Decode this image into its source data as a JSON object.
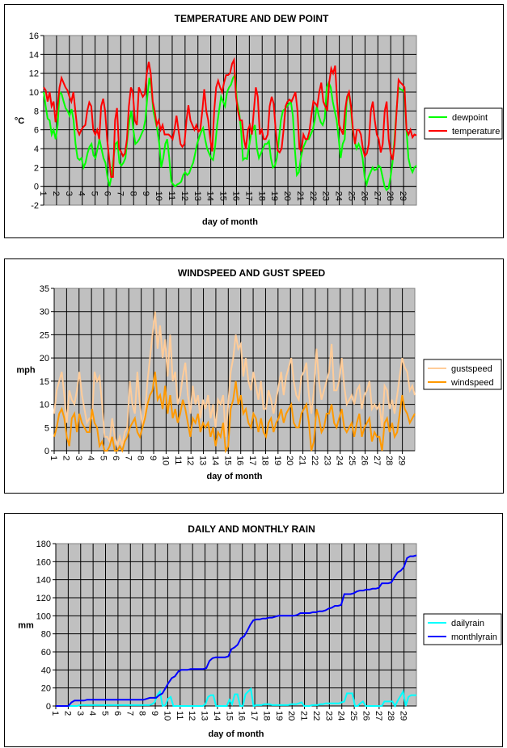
{
  "chart_data": [
    {
      "id": "temp",
      "type": "line",
      "title": "TEMPERATURE AND DEW POINT",
      "xlabel": "day of month",
      "ylabel": "°C",
      "ylim": [
        -2,
        16
      ],
      "yticks": [
        -2,
        0,
        2,
        4,
        6,
        8,
        10,
        12,
        14,
        16
      ],
      "xlim": [
        1,
        30
      ],
      "xticks": [
        "1",
        "2",
        "3",
        "4",
        "5",
        "6",
        "7",
        "8",
        "9",
        "10",
        "11",
        "12",
        "13",
        "14",
        "15",
        "16",
        "17",
        "18",
        "19",
        "20",
        "21",
        "22",
        "23",
        "24",
        "25",
        "26",
        "27",
        "28",
        "29"
      ],
      "grid": true,
      "legend": "right",
      "samples_per_day": 4,
      "series": [
        {
          "name": "dewpoint",
          "color": "#00ff00",
          "values": [
            10,
            8.5,
            7.2,
            7,
            5.5,
            6,
            5,
            6.5,
            10,
            9.8,
            9,
            8.3,
            8,
            7.5,
            8.2,
            7,
            4.5,
            3,
            2.8,
            3,
            2,
            2.5,
            3.5,
            4.2,
            4.5,
            3.3,
            3,
            4,
            5,
            4,
            3,
            2.5,
            1,
            0,
            1,
            3,
            4.5,
            4.7,
            2.5,
            2.2,
            2.5,
            3,
            5,
            7,
            8,
            6,
            4.5,
            4.7,
            5,
            5.5,
            6,
            7,
            9.5,
            11.5,
            10.5,
            8,
            7,
            6,
            4.5,
            2,
            3,
            4.5,
            5,
            3,
            0.5,
            0.2,
            0,
            0.2,
            0.3,
            0.5,
            1.2,
            1.5,
            1.2,
            1.4,
            2,
            2.5,
            3.5,
            4.5,
            5.2,
            5.8,
            6.2,
            5,
            4,
            3.5,
            3,
            2.8,
            4.2,
            6.5,
            8,
            9.5,
            9,
            8.5,
            10,
            10.5,
            10.8,
            11.5,
            11.8,
            9,
            8,
            6,
            2.8,
            3,
            2.9,
            4.2,
            5.5,
            6,
            6.5,
            4,
            3,
            3.5,
            4,
            4.5,
            4.5,
            4.8,
            3,
            2,
            2.2,
            3,
            5,
            7,
            8,
            8.2,
            8.5,
            8.7,
            9,
            7.5,
            4,
            1.2,
            1.5,
            3,
            4,
            4.5,
            5,
            5,
            5.5,
            6,
            7,
            8.5,
            7.5,
            6.8,
            6.5,
            7.2,
            10.5,
            11,
            10.5,
            9,
            8,
            7,
            5,
            3,
            4.5,
            5,
            9,
            10,
            8.5,
            6,
            4.8,
            4,
            4.5,
            4,
            3,
            1,
            0.2,
            1,
            1.5,
            2,
            1.7,
            1.8,
            2.2,
            2,
            1,
            0,
            -0.4,
            -0.2,
            1,
            2.5,
            5,
            8,
            10.5,
            10.3,
            10.2,
            10,
            6,
            3,
            2,
            1.5,
            2,
            2.2
          ]
        },
        {
          "name": "temperature",
          "color": "#ff0000",
          "values": [
            10.5,
            10.2,
            9,
            10,
            8.5,
            9,
            6.8,
            8.5,
            10.5,
            11.5,
            11,
            10.5,
            10.2,
            9.5,
            9,
            10,
            8,
            6,
            5.5,
            6,
            6.3,
            6.5,
            8,
            8.9,
            8.5,
            6,
            5.5,
            6,
            5,
            8.5,
            9.3,
            8,
            5,
            3,
            1,
            1,
            7,
            8.3,
            4,
            3.7,
            3.2,
            3.5,
            5,
            8.5,
            10.5,
            10,
            7,
            6.5,
            10.5,
            10,
            9.5,
            9.8,
            12,
            13.2,
            12,
            9,
            8,
            6.5,
            7,
            6,
            6.5,
            5.5,
            5.5,
            5.5,
            5.3,
            5,
            6,
            7.5,
            6,
            4.5,
            4.2,
            4.5,
            7,
            8.6,
            7,
            6.5,
            6,
            6.5,
            5.8,
            6,
            8,
            10.3,
            8,
            7,
            5,
            3.7,
            8,
            10.5,
            11.2,
            10.5,
            10,
            11,
            11.8,
            11.8,
            12,
            13,
            13.4,
            9.5,
            8,
            7,
            7,
            5,
            4,
            6,
            6.5,
            5.5,
            8,
            10.5,
            9.5,
            5.5,
            6,
            5,
            5,
            5.5,
            8.5,
            9.5,
            8.8,
            6,
            3.8,
            3.6,
            4,
            6,
            8.5,
            9,
            9.2,
            9,
            9.5,
            10,
            8,
            4,
            3.8,
            5.5,
            5,
            5,
            5.8,
            7.5,
            9,
            8.8,
            8.5,
            10,
            11,
            9,
            8.5,
            8,
            11,
            12.5,
            12,
            12.8,
            9,
            6.5,
            6,
            5.5,
            8,
            9.5,
            10,
            8.5,
            6,
            4.5,
            6,
            6,
            5.5,
            4,
            3.2,
            3.5,
            4.5,
            8,
            9,
            7,
            5.5,
            5,
            3.6,
            4.5,
            8,
            9,
            5,
            3.5,
            2.8,
            4.5,
            8,
            11.3,
            11,
            10.8,
            10.5,
            6,
            5.5,
            6,
            5.2,
            5.5,
            5.4
          ]
        }
      ]
    },
    {
      "id": "wind",
      "type": "line",
      "title": "WINDSPEED AND GUST SPEED",
      "xlabel": "day of month",
      "ylabel": "mph",
      "ylim": [
        0,
        35
      ],
      "yticks": [
        0,
        5,
        10,
        15,
        20,
        25,
        30,
        35
      ],
      "xlim": [
        1,
        30
      ],
      "xticks": [
        "1",
        "2",
        "3",
        "4",
        "5",
        "6",
        "7",
        "8",
        "9",
        "10",
        "11",
        "12",
        "13",
        "14",
        "15",
        "16",
        "17",
        "18",
        "19",
        "20",
        "21",
        "22",
        "23",
        "24",
        "25",
        "26",
        "27",
        "28",
        "29"
      ],
      "grid": true,
      "legend": "right",
      "samples_per_day": 4,
      "series": [
        {
          "name": "gustspeed",
          "color": "#ffcc99",
          "values": [
            8,
            13,
            15,
            17,
            12,
            6,
            13,
            11,
            10,
            13,
            17,
            12,
            9,
            6,
            7,
            7,
            17,
            15,
            16,
            10,
            3,
            3,
            2,
            7,
            3,
            1,
            3,
            1,
            4,
            5,
            15,
            10,
            8,
            17,
            10,
            5,
            8,
            15,
            20,
            25,
            30,
            22,
            27,
            20,
            24,
            16,
            25,
            15,
            17,
            10,
            12,
            16,
            19,
            12,
            8,
            14,
            10,
            12,
            7,
            11,
            9,
            12,
            7,
            10,
            5,
            11,
            10,
            12,
            3,
            10,
            17,
            20,
            25,
            22,
            23,
            16,
            20,
            15,
            13,
            17,
            14,
            11,
            15,
            9,
            9,
            13,
            11,
            8,
            11,
            14,
            17,
            12,
            16,
            18,
            20,
            15,
            12,
            11,
            16,
            17,
            19,
            12,
            8,
            13,
            22,
            15,
            11,
            13,
            15,
            17,
            23,
            13,
            13,
            15,
            20,
            14,
            10,
            11,
            12,
            10,
            13,
            14,
            9,
            12,
            13,
            15,
            9,
            10,
            9,
            10,
            5,
            14,
            13,
            9,
            11,
            8,
            12,
            16,
            20,
            18,
            17,
            13,
            14,
            12
          ]
        },
        {
          "name": "windspeed",
          "color": "#ff9900",
          "values": [
            3,
            5,
            8,
            9,
            7,
            3,
            1,
            7,
            8,
            4,
            8,
            6,
            5,
            4,
            4,
            9,
            6,
            5,
            1,
            2,
            0,
            0,
            1,
            3,
            0,
            0,
            1,
            0,
            2,
            3,
            5,
            6,
            7,
            4,
            3,
            5,
            7,
            10,
            12,
            13,
            17,
            11,
            12,
            9,
            14,
            8,
            12,
            7,
            9,
            6,
            8,
            11,
            9,
            6,
            3,
            7,
            6,
            8,
            4,
            6,
            5,
            6,
            3,
            5,
            1,
            4,
            3,
            6,
            0,
            1,
            9,
            11,
            15,
            10,
            12,
            8,
            9,
            6,
            5,
            8,
            7,
            4,
            7,
            4,
            3,
            6,
            7,
            4,
            6,
            7,
            9,
            6,
            8,
            9,
            10,
            6,
            5,
            5,
            8,
            9,
            10,
            6,
            0,
            2,
            9,
            7,
            4,
            5,
            8,
            8,
            10,
            6,
            5,
            7,
            9,
            5,
            4,
            5,
            6,
            3,
            6,
            8,
            3,
            5,
            6,
            7,
            2,
            4,
            3,
            3,
            0,
            6,
            7,
            4,
            6,
            3,
            4,
            8,
            12,
            9,
            8,
            6,
            7,
            8
          ]
        }
      ]
    },
    {
      "id": "rain",
      "type": "line",
      "title": "DAILY AND MONTHLY RAIN",
      "xlabel": "day of month",
      "ylabel": "mm",
      "ylim": [
        0,
        180
      ],
      "yticks": [
        0,
        20,
        40,
        60,
        80,
        100,
        120,
        140,
        160,
        180
      ],
      "xlim": [
        1,
        30
      ],
      "xticks": [
        "1",
        "2",
        "3",
        "4",
        "5",
        "6",
        "7",
        "8",
        "9",
        "10",
        "11",
        "12",
        "13",
        "14",
        "15",
        "16",
        "17",
        "18",
        "19",
        "20",
        "21",
        "22",
        "23",
        "24",
        "25",
        "26",
        "27",
        "28",
        "29"
      ],
      "grid": true,
      "legend": "right",
      "samples_per_day": 4,
      "series": [
        {
          "name": "dailyrain",
          "color": "#00ffff",
          "values": [
            0,
            0,
            0,
            0,
            0,
            0,
            0,
            0,
            0,
            1,
            1,
            1,
            1,
            1,
            1,
            1,
            1,
            1,
            1,
            1,
            1,
            1,
            1,
            1,
            1,
            1,
            1,
            1,
            1,
            1,
            1,
            1,
            1,
            1,
            1,
            1,
            2,
            4,
            12,
            16,
            0,
            1,
            8,
            10,
            0,
            0,
            0,
            0,
            0,
            0,
            0,
            0,
            0,
            0,
            0,
            0,
            2,
            10,
            12,
            12,
            0,
            0,
            0,
            0,
            0,
            7,
            2,
            13,
            13,
            0,
            0,
            13,
            16,
            19,
            0,
            1,
            1,
            1,
            2,
            2,
            2,
            1,
            1,
            1,
            1,
            1,
            1,
            1,
            2,
            2,
            2,
            3,
            4,
            0,
            0,
            0,
            1,
            1,
            1,
            2,
            2,
            3,
            3,
            3,
            3,
            3,
            3,
            4,
            5,
            14,
            14,
            14,
            0,
            0,
            3,
            5,
            0,
            0,
            0,
            0,
            0,
            0,
            0,
            5,
            5,
            5,
            5,
            0,
            6,
            11,
            16,
            0,
            10,
            12,
            12,
            12
          ]
        },
        {
          "name": "monthlyrain",
          "color": "#0000ff",
          "values": [
            0,
            0,
            0,
            0,
            0,
            4,
            6,
            6,
            6,
            6,
            7,
            7,
            7,
            7,
            7,
            7,
            7,
            7,
            7,
            7,
            7,
            7,
            7,
            7,
            7,
            7,
            7,
            7,
            7,
            8,
            9,
            9,
            9,
            12,
            14,
            20,
            26,
            31,
            33,
            38,
            40,
            40,
            40,
            41,
            41,
            41,
            41,
            41,
            42,
            50,
            53,
            54,
            54,
            54,
            54,
            55,
            63,
            65,
            68,
            75,
            77,
            83,
            90,
            95,
            96,
            96,
            97,
            97,
            98,
            98,
            99,
            100,
            100,
            100,
            100,
            100,
            100,
            101,
            103,
            103,
            103,
            103,
            104,
            104,
            105,
            105,
            106,
            108,
            109,
            111,
            111,
            112,
            124,
            124,
            124,
            125,
            127,
            128,
            128,
            129,
            129,
            130,
            130,
            131,
            136,
            136,
            136,
            137,
            143,
            148,
            150,
            154,
            164,
            166,
            166,
            167
          ]
        }
      ]
    }
  ]
}
